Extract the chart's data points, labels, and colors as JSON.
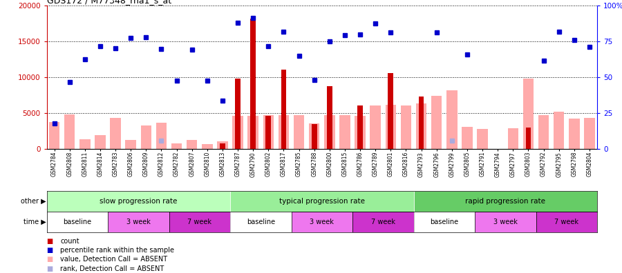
{
  "title": "GDS172 / M77348_rna1_s_at",
  "samples": [
    "GSM2784",
    "GSM2808",
    "GSM2811",
    "GSM2814",
    "GSM2783",
    "GSM2806",
    "GSM2809",
    "GSM2812",
    "GSM2782",
    "GSM2807",
    "GSM2810",
    "GSM2813",
    "GSM2787",
    "GSM2790",
    "GSM2802",
    "GSM2817",
    "GSM2785",
    "GSM2788",
    "GSM2800",
    "GSM2815",
    "GSM2786",
    "GSM2789",
    "GSM2801",
    "GSM2816",
    "GSM2793",
    "GSM2796",
    "GSM2799",
    "GSM2805",
    "GSM2791",
    "GSM2794",
    "GSM2797",
    "GSM2803",
    "GSM2792",
    "GSM2795",
    "GSM2798",
    "GSM2804"
  ],
  "count": [
    0,
    0,
    0,
    0,
    0,
    0,
    0,
    0,
    0,
    0,
    0,
    800,
    9800,
    18200,
    4600,
    11000,
    0,
    3400,
    8700,
    0,
    6000,
    0,
    10600,
    0,
    7300,
    0,
    0,
    0,
    0,
    0,
    0,
    3000,
    0,
    0,
    0,
    0
  ],
  "percentile_rank": [
    3500,
    9300,
    12500,
    14300,
    14000,
    15500,
    15600,
    13900,
    9500,
    13800,
    9500,
    6700,
    17600,
    18300,
    14300,
    16300,
    13000,
    9600,
    15000,
    15900,
    16000,
    17500,
    16200,
    0,
    0,
    16200,
    0,
    13200,
    0,
    0,
    0,
    0,
    12300,
    16300,
    15200,
    14200
  ],
  "value_absent": [
    3700,
    4800,
    1300,
    1900,
    4300,
    1200,
    3300,
    3600,
    800,
    1200,
    700,
    1000,
    4600,
    4600,
    4700,
    4700,
    4700,
    3500,
    4700,
    4700,
    4600,
    6000,
    6100,
    6000,
    6300,
    7400,
    8200,
    3100,
    2800,
    0,
    2900,
    9800,
    4700,
    5200,
    4200,
    4300
  ],
  "rank_absent": [
    0,
    0,
    0,
    0,
    0,
    0,
    0,
    1100,
    0,
    0,
    0,
    0,
    0,
    0,
    0,
    0,
    0,
    0,
    0,
    0,
    0,
    0,
    0,
    0,
    0,
    0,
    1100,
    0,
    0,
    0,
    0,
    0,
    0,
    0,
    0,
    0
  ],
  "group_labels": [
    "slow progression rate",
    "typical progression rate",
    "rapid progression rate"
  ],
  "group_colors": [
    "#bbffbb",
    "#99ee99",
    "#66cc66"
  ],
  "group_sizes": [
    12,
    12,
    12
  ],
  "time_labels": [
    "baseline",
    "3 week",
    "7 week"
  ],
  "time_colors": [
    "#ffffff",
    "#ee77ee",
    "#cc33cc"
  ],
  "time_size": 4,
  "ymax": 20000,
  "yright_max": 100,
  "yticks_left": [
    0,
    5000,
    10000,
    15000,
    20000
  ],
  "yticks_right_vals": [
    0,
    25,
    50,
    75,
    100
  ],
  "yticks_right_labels": [
    "0",
    "25",
    "50",
    "75",
    "100%"
  ],
  "count_color": "#cc0000",
  "percentile_color": "#0000cc",
  "value_absent_color": "#ffaaaa",
  "rank_absent_color": "#aaaadd",
  "legend": [
    {
      "symbol": "s",
      "label": "count",
      "color": "#cc0000"
    },
    {
      "symbol": "s",
      "label": "percentile rank within the sample",
      "color": "#0000cc"
    },
    {
      "symbol": "s",
      "label": "value, Detection Call = ABSENT",
      "color": "#ffaaaa"
    },
    {
      "symbol": "s",
      "label": "rank, Detection Call = ABSENT",
      "color": "#aaaadd"
    }
  ]
}
